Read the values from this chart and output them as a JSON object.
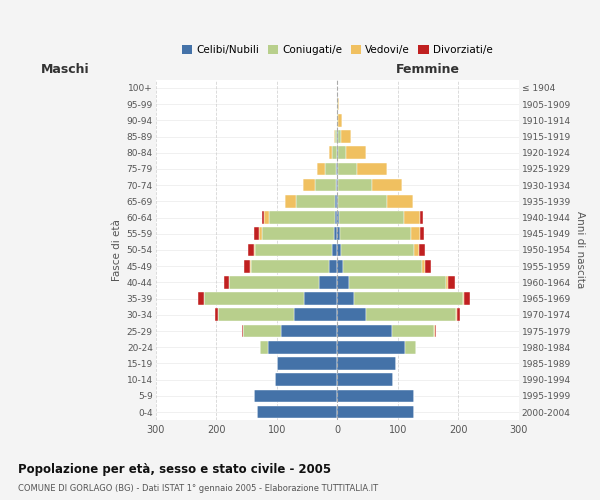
{
  "age_groups": [
    "100+",
    "95-99",
    "90-94",
    "85-89",
    "80-84",
    "75-79",
    "70-74",
    "65-69",
    "60-64",
    "55-59",
    "50-54",
    "45-49",
    "40-44",
    "35-39",
    "30-34",
    "25-29",
    "20-24",
    "15-19",
    "10-14",
    "5-9",
    "0-4"
  ],
  "birth_years": [
    "≤ 1904",
    "1905-1909",
    "1910-1914",
    "1915-1919",
    "1920-1924",
    "1925-1929",
    "1930-1934",
    "1935-1939",
    "1940-1944",
    "1945-1949",
    "1950-1954",
    "1955-1959",
    "1960-1964",
    "1965-1969",
    "1970-1974",
    "1975-1979",
    "1980-1984",
    "1985-1989",
    "1990-1994",
    "1995-1999",
    "2000-2004"
  ],
  "male_celibe": [
    0,
    0,
    0,
    1,
    1,
    2,
    2,
    3,
    4,
    5,
    8,
    13,
    30,
    55,
    72,
    93,
    115,
    100,
    103,
    138,
    133
  ],
  "male_coniugato": [
    0,
    0,
    1,
    3,
    7,
    18,
    35,
    65,
    108,
    120,
    128,
    130,
    148,
    165,
    125,
    62,
    12,
    0,
    0,
    0,
    0
  ],
  "male_vedovo": [
    0,
    0,
    0,
    2,
    6,
    14,
    20,
    18,
    9,
    4,
    2,
    1,
    1,
    0,
    0,
    0,
    0,
    0,
    0,
    0,
    0
  ],
  "male_divorziato": [
    0,
    0,
    0,
    0,
    0,
    0,
    0,
    0,
    3,
    8,
    10,
    10,
    8,
    10,
    5,
    2,
    0,
    0,
    0,
    0,
    0
  ],
  "female_nubile": [
    0,
    0,
    0,
    1,
    1,
    1,
    2,
    2,
    3,
    4,
    7,
    10,
    20,
    28,
    48,
    90,
    112,
    97,
    92,
    127,
    127
  ],
  "female_coniugata": [
    0,
    1,
    2,
    6,
    14,
    32,
    55,
    80,
    108,
    118,
    120,
    130,
    160,
    180,
    148,
    70,
    18,
    0,
    0,
    0,
    0
  ],
  "female_vedova": [
    0,
    2,
    6,
    16,
    32,
    50,
    50,
    44,
    25,
    14,
    8,
    5,
    3,
    2,
    2,
    2,
    0,
    0,
    0,
    0,
    0
  ],
  "female_divorziata": [
    0,
    0,
    0,
    0,
    0,
    0,
    0,
    0,
    5,
    8,
    10,
    10,
    12,
    10,
    5,
    2,
    0,
    0,
    0,
    0,
    0
  ],
  "color_celibe": "#4472a8",
  "color_coniugato": "#b8cf8c",
  "color_vedovo": "#f0c060",
  "color_divorziato": "#c02020",
  "title": "Popolazione per età, sesso e stato civile - 2005",
  "subtitle": "COMUNE DI GORLAGO (BG) - Dati ISTAT 1° gennaio 2005 - Elaborazione TUTTITALIA.IT",
  "legend_labels": [
    "Celibi/Nubili",
    "Coniugati/e",
    "Vedovi/e",
    "Divorziati/e"
  ],
  "maschi_label": "Maschi",
  "femmine_label": "Femmine",
  "ylabel_left": "Fasce di età",
  "ylabel_right": "Anni di nascita",
  "xlim": 300,
  "bg_color": "#f4f4f4",
  "plot_bg_color": "#ffffff",
  "grid_color": "#cccccc"
}
